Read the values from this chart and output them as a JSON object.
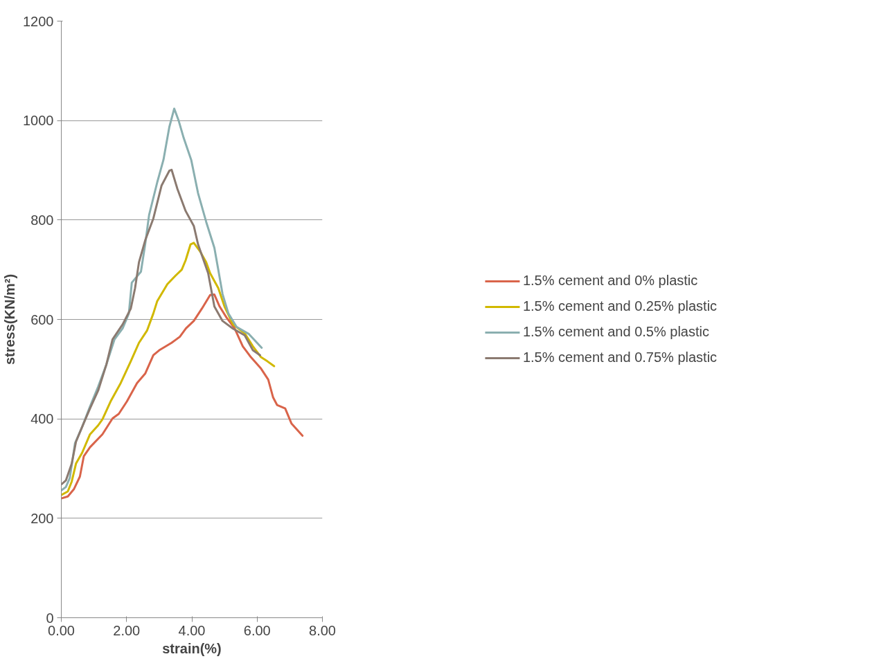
{
  "chart_data": {
    "type": "line",
    "xlabel": "strain(%)",
    "ylabel": "stress(KN/m²)",
    "xlim": [
      0,
      8
    ],
    "ylim": [
      0,
      1200
    ],
    "xticks": [
      {
        "value": 0,
        "label": "0.00"
      },
      {
        "value": 2,
        "label": "2.00"
      },
      {
        "value": 4,
        "label": "4.00"
      },
      {
        "value": 6,
        "label": "6.00"
      },
      {
        "value": 8,
        "label": "8.00"
      }
    ],
    "yticks": [
      0,
      200,
      400,
      600,
      800,
      1000,
      1200
    ],
    "grid": "y",
    "legend": "right",
    "line_style": "solid",
    "marker": "none",
    "series": [
      {
        "name": "1.5% cement and 0% plastic",
        "color": "#d9644a",
        "x": [
          0,
          0.2,
          0.39,
          0.57,
          0.69,
          0.88,
          1.26,
          1.57,
          1.76,
          2.01,
          2.32,
          2.57,
          2.82,
          3.0,
          3.38,
          3.63,
          3.82,
          4.06,
          4.31,
          4.56,
          4.69,
          4.85,
          5.06,
          5.31,
          5.56,
          5.81,
          6.12,
          6.34,
          6.49,
          6.61,
          6.86,
          7.05,
          7.39
        ],
        "values": [
          240,
          244,
          259,
          284,
          325,
          343,
          369,
          401,
          410,
          435,
          472,
          491,
          528,
          538,
          553,
          565,
          582,
          597,
          622,
          649,
          650,
          626,
          604,
          582,
          546,
          524,
          501,
          479,
          443,
          428,
          421,
          391,
          366
        ]
      },
      {
        "name": "1.5% cement and 0.25% plastic",
        "color": "#d1b800",
        "x": [
          0,
          0.2,
          0.32,
          0.45,
          0.64,
          0.88,
          1.13,
          1.26,
          1.51,
          1.82,
          2.13,
          2.38,
          2.63,
          2.82,
          2.94,
          3.25,
          3.5,
          3.69,
          3.81,
          3.96,
          4.06,
          4.25,
          4.44,
          4.56,
          4.81,
          5.0,
          5.26,
          5.62,
          5.87,
          6.12,
          6.31,
          6.52
        ],
        "values": [
          247,
          254,
          274,
          310,
          332,
          369,
          387,
          399,
          435,
          472,
          516,
          553,
          578,
          612,
          637,
          671,
          688,
          700,
          719,
          751,
          754,
          737,
          715,
          693,
          663,
          626,
          590,
          572,
          546,
          524,
          516,
          506
        ]
      },
      {
        "name": "1.5% cement and 0.5% plastic",
        "color": "#8aafb0",
        "x": [
          0,
          0.14,
          0.26,
          0.42,
          0.64,
          0.88,
          1.13,
          1.38,
          1.63,
          1.88,
          2.07,
          2.16,
          2.44,
          2.57,
          2.69,
          2.94,
          3.13,
          3.31,
          3.46,
          3.59,
          3.75,
          3.98,
          4.19,
          4.44,
          4.69,
          4.81,
          4.94,
          5.12,
          5.37,
          5.74,
          6.14
        ],
        "values": [
          256,
          263,
          281,
          351,
          384,
          425,
          465,
          509,
          560,
          582,
          612,
          674,
          696,
          751,
          810,
          876,
          921,
          987,
          1024,
          1001,
          965,
          921,
          854,
          796,
          744,
          700,
          651,
          612,
          585,
          571,
          543
        ]
      },
      {
        "name": "1.5% cement and 0.75% plastic",
        "color": "#8b7a70",
        "x": [
          0,
          0.14,
          0.32,
          0.45,
          0.64,
          0.88,
          1.13,
          1.38,
          1.57,
          1.88,
          2.13,
          2.26,
          2.38,
          2.57,
          2.82,
          3.07,
          3.31,
          3.38,
          3.56,
          3.81,
          4.06,
          4.19,
          4.5,
          4.69,
          4.94,
          5.25,
          5.62,
          5.87,
          6.09
        ],
        "values": [
          268,
          276,
          310,
          354,
          384,
          421,
          457,
          509,
          560,
          590,
          622,
          663,
          715,
          759,
          803,
          869,
          899,
          901,
          862,
          818,
          788,
          751,
          693,
          626,
          597,
          582,
          568,
          538,
          528
        ]
      }
    ]
  }
}
